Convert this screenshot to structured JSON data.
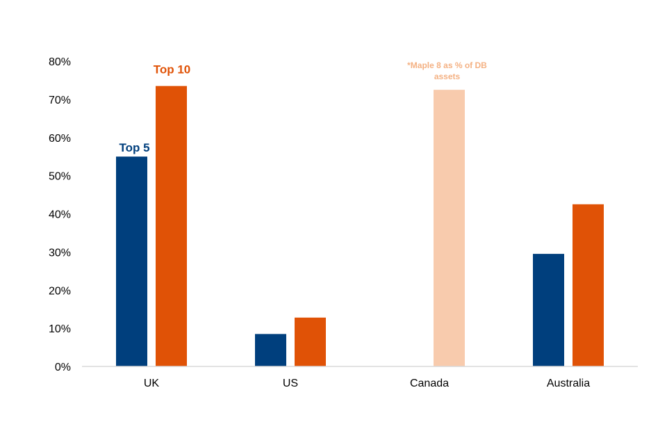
{
  "chart_data": {
    "type": "bar",
    "title": "",
    "xlabel": "",
    "ylabel": "",
    "categories": [
      "UK",
      "US",
      "Canada",
      "Australia"
    ],
    "ylim": [
      0,
      80
    ],
    "yticks": [
      "0%",
      "10%",
      "20%",
      "30%",
      "40%",
      "50%",
      "60%",
      "70%",
      "80%"
    ],
    "series": [
      {
        "values": [
          55,
          8.5,
          null,
          29.5
        ],
        "color": "#003f7d"
      },
      {
        "values": [
          73.5,
          12.8,
          null,
          42.5
        ],
        "color": "#e05206"
      },
      {
        "values": [
          null,
          null,
          72.5,
          null
        ],
        "color": "#f8cbad"
      }
    ],
    "annotations": {
      "top5": {
        "text": "Top 5",
        "color": "#003f7d"
      },
      "top10": {
        "text": "Top 10",
        "color": "#e05206"
      },
      "maple_line1": "*Maple 8 as % of DB",
      "maple_line2": "assets",
      "maple_color": "#f4b183"
    },
    "grid": false,
    "legend": "none"
  }
}
